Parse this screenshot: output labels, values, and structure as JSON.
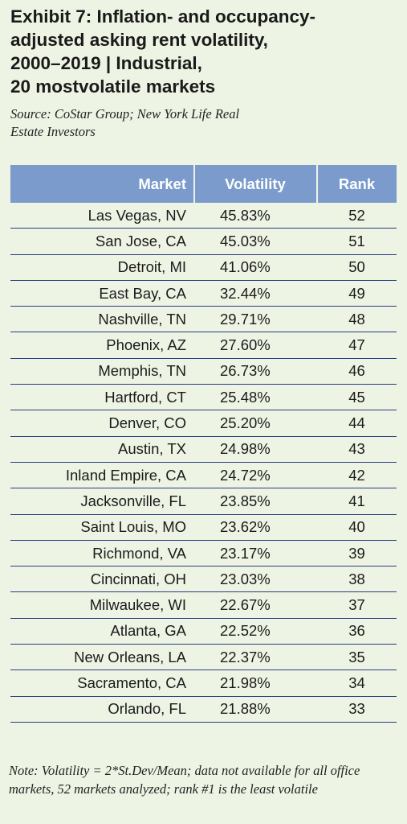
{
  "header": {
    "title": [
      "Exhibit 7: Inflation- and occupancy-",
      "adjusted asking rent volatility,",
      "2000–2019 | Industrial,",
      "20 mostvolatile markets"
    ],
    "source": "Source: CoStar Group; New York Life Real Estate Investors"
  },
  "table": {
    "columns": [
      "Market",
      "Volatility",
      "Rank"
    ],
    "rows": [
      [
        "Las Vegas, NV",
        "45.83%",
        52
      ],
      [
        "San Jose, CA",
        "45.03%",
        51
      ],
      [
        "Detroit, MI",
        "41.06%",
        50
      ],
      [
        "East Bay, CA",
        "32.44%",
        49
      ],
      [
        "Nashville, TN",
        "29.71%",
        48
      ],
      [
        "Phoenix, AZ",
        "27.60%",
        47
      ],
      [
        "Memphis, TN",
        "26.73%",
        46
      ],
      [
        "Hartford, CT",
        "25.48%",
        45
      ],
      [
        "Denver, CO",
        "25.20%",
        44
      ],
      [
        "Austin, TX",
        "24.98%",
        43
      ],
      [
        "Inland Empire, CA",
        "24.72%",
        42
      ],
      [
        "Jacksonville, FL",
        "23.85%",
        41
      ],
      [
        "Saint Louis, MO",
        "23.62%",
        40
      ],
      [
        "Richmond, VA",
        "23.17%",
        39
      ],
      [
        "Cincinnati, OH",
        "23.03%",
        38
      ],
      [
        "Milwaukee, WI",
        "22.67%",
        37
      ],
      [
        "Atlanta, GA",
        "22.52%",
        36
      ],
      [
        "New Orleans, LA",
        "22.37%",
        35
      ],
      [
        "Sacramento, CA",
        "21.98%",
        34
      ],
      [
        "Orlando, FL",
        "21.88%",
        33
      ]
    ]
  },
  "note": "Note: Volatility = 2*St.Dev/Mean; data not available for all office markets, 52 markets analyzed; rank #1 is the least volatile"
}
